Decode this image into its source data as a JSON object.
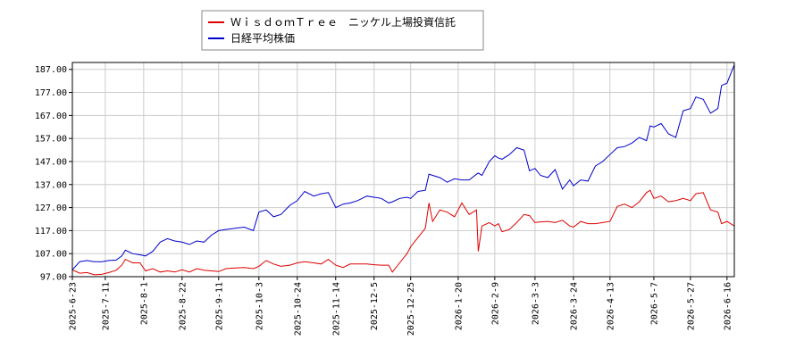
{
  "chart_data": {
    "type": "line",
    "title": "",
    "xlabel": "",
    "ylabel": "",
    "ylim": [
      97,
      190
    ],
    "grid": true,
    "legend_placement": "top-center",
    "y_ticks": [
      "187.00",
      "177.00",
      "167.00",
      "157.00",
      "147.00",
      "137.00",
      "127.00",
      "117.00",
      "107.00",
      "97.00"
    ],
    "x_ticks": [
      "2025-6-23",
      "2025-7-11",
      "2025-8-1",
      "2025-8-22",
      "2025-9-11",
      "2025-10-3",
      "2025-10-24",
      "2025-11-14",
      "2025-12-5",
      "2025-12-25",
      "2026-1-20",
      "2026-2-9",
      "2026-3-3",
      "2026-3-24",
      "2026-4-13",
      "2026-5-7",
      "2026-5-27",
      "2026-6-16"
    ],
    "x_range": [
      "2025-6-23",
      "2026-6-20"
    ],
    "series": [
      {
        "name": "ＷｉｓｄｏｍＴｒｅｅ　ニッケル上場投資信託",
        "color": "#dd0000",
        "points": [
          [
            "2025-6-23",
            100.0
          ],
          [
            "2025-6-27",
            98.5
          ],
          [
            "2025-7-1",
            98.8
          ],
          [
            "2025-7-5",
            97.8
          ],
          [
            "2025-7-9",
            98.0
          ],
          [
            "2025-7-13",
            98.8
          ],
          [
            "2025-7-17",
            99.8
          ],
          [
            "2025-7-20",
            102.0
          ],
          [
            "2025-7-22",
            104.5
          ],
          [
            "2025-7-26",
            103.0
          ],
          [
            "2025-7-30",
            103.0
          ],
          [
            "2025-8-2",
            99.5
          ],
          [
            "2025-8-6",
            100.5
          ],
          [
            "2025-8-10",
            99.0
          ],
          [
            "2025-8-14",
            99.5
          ],
          [
            "2025-8-18",
            99.0
          ],
          [
            "2025-8-22",
            100.0
          ],
          [
            "2025-8-26",
            99.0
          ],
          [
            "2025-8-30",
            100.5
          ],
          [
            "2025-9-3",
            99.8
          ],
          [
            "2025-9-7",
            99.5
          ],
          [
            "2025-9-11",
            99.2
          ],
          [
            "2025-9-15",
            100.5
          ],
          [
            "2025-9-20",
            100.8
          ],
          [
            "2025-9-25",
            101.0
          ],
          [
            "2025-9-30",
            100.5
          ],
          [
            "2025-10-3",
            101.5
          ],
          [
            "2025-10-7",
            104.0
          ],
          [
            "2025-10-11",
            102.5
          ],
          [
            "2025-10-15",
            101.5
          ],
          [
            "2025-10-20",
            102.0
          ],
          [
            "2025-10-24",
            103.0
          ],
          [
            "2025-10-28",
            103.5
          ],
          [
            "2025-11-2",
            103.0
          ],
          [
            "2025-11-6",
            102.5
          ],
          [
            "2025-11-10",
            104.5
          ],
          [
            "2025-11-14",
            102.0
          ],
          [
            "2025-11-18",
            101.0
          ],
          [
            "2025-11-22",
            102.5
          ],
          [
            "2025-11-26",
            102.5
          ],
          [
            "2025-12-1",
            102.5
          ],
          [
            "2025-12-5",
            102.2
          ],
          [
            "2025-12-9",
            102.0
          ],
          [
            "2025-12-13",
            102.0
          ],
          [
            "2025-12-15",
            99.0
          ],
          [
            "2025-12-19",
            103.0
          ],
          [
            "2025-12-23",
            107.0
          ],
          [
            "2025-12-25",
            110.0
          ],
          [
            "2025-12-29",
            114.0
          ],
          [
            "2026-1-2",
            118.0
          ],
          [
            "2026-1-4",
            129.0
          ],
          [
            "2026-1-6",
            121.0
          ],
          [
            "2026-1-10",
            126.0
          ],
          [
            "2026-1-14",
            125.0
          ],
          [
            "2026-1-18",
            123.0
          ],
          [
            "2026-1-22",
            129.0
          ],
          [
            "2026-1-26",
            124.0
          ],
          [
            "2026-1-30",
            126.0
          ],
          [
            "2026-1-31",
            108.0
          ],
          [
            "2026-2-2",
            119.0
          ],
          [
            "2026-2-6",
            120.5
          ],
          [
            "2026-2-9",
            119.0
          ],
          [
            "2026-2-11",
            120.0
          ],
          [
            "2026-2-13",
            116.5
          ],
          [
            "2026-2-17",
            117.5
          ],
          [
            "2026-2-21",
            120.5
          ],
          [
            "2026-2-25",
            124.0
          ],
          [
            "2026-2-28",
            123.5
          ],
          [
            "2026-3-3",
            120.5
          ],
          [
            "2026-3-6",
            120.8
          ],
          [
            "2026-3-10",
            121.0
          ],
          [
            "2026-3-14",
            120.5
          ],
          [
            "2026-3-18",
            121.5
          ],
          [
            "2026-3-22",
            119.0
          ],
          [
            "2026-3-24",
            118.5
          ],
          [
            "2026-3-28",
            121.0
          ],
          [
            "2026-4-1",
            120.0
          ],
          [
            "2026-4-5",
            120.0
          ],
          [
            "2026-4-9",
            120.5
          ],
          [
            "2026-4-13",
            121.0
          ],
          [
            "2026-4-17",
            127.5
          ],
          [
            "2026-4-21",
            128.5
          ],
          [
            "2026-4-25",
            127.0
          ],
          [
            "2026-4-29",
            129.5
          ],
          [
            "2026-5-3",
            133.5
          ],
          [
            "2026-5-5",
            134.5
          ],
          [
            "2026-5-7",
            131.0
          ],
          [
            "2026-5-11",
            132.0
          ],
          [
            "2026-5-15",
            129.5
          ],
          [
            "2026-5-19",
            130.0
          ],
          [
            "2026-5-23",
            131.0
          ],
          [
            "2026-5-27",
            130.0
          ],
          [
            "2026-5-30",
            133.0
          ],
          [
            "2026-6-3",
            133.5
          ],
          [
            "2026-6-7",
            126.0
          ],
          [
            "2026-6-11",
            125.0
          ],
          [
            "2026-6-13",
            120.0
          ],
          [
            "2026-6-16",
            121.0
          ],
          [
            "2026-6-20",
            119.0
          ]
        ]
      },
      {
        "name": "日経平均株価",
        "color": "#0000cc",
        "points": [
          [
            "2025-6-23",
            100.0
          ],
          [
            "2025-6-27",
            103.5
          ],
          [
            "2025-7-1",
            104.0
          ],
          [
            "2025-7-5",
            103.5
          ],
          [
            "2025-7-9",
            103.5
          ],
          [
            "2025-7-13",
            104.0
          ],
          [
            "2025-7-17",
            104.2
          ],
          [
            "2025-7-20",
            106.0
          ],
          [
            "2025-7-22",
            108.5
          ],
          [
            "2025-7-26",
            107.0
          ],
          [
            "2025-7-30",
            106.5
          ],
          [
            "2025-8-2",
            106.0
          ],
          [
            "2025-8-6",
            108.0
          ],
          [
            "2025-8-10",
            112.0
          ],
          [
            "2025-8-14",
            113.5
          ],
          [
            "2025-8-18",
            112.5
          ],
          [
            "2025-8-22",
            112.0
          ],
          [
            "2025-8-26",
            111.0
          ],
          [
            "2025-8-30",
            112.5
          ],
          [
            "2025-9-3",
            112.0
          ],
          [
            "2025-9-7",
            115.0
          ],
          [
            "2025-9-11",
            117.0
          ],
          [
            "2025-9-15",
            117.5
          ],
          [
            "2025-9-20",
            118.0
          ],
          [
            "2025-9-25",
            118.5
          ],
          [
            "2025-9-30",
            117.0
          ],
          [
            "2025-10-3",
            125.0
          ],
          [
            "2025-10-7",
            126.0
          ],
          [
            "2025-10-11",
            123.0
          ],
          [
            "2025-10-15",
            124.0
          ],
          [
            "2025-10-20",
            128.0
          ],
          [
            "2025-10-24",
            130.0
          ],
          [
            "2025-10-28",
            134.0
          ],
          [
            "2025-11-2",
            132.0
          ],
          [
            "2025-11-6",
            133.0
          ],
          [
            "2025-11-10",
            133.5
          ],
          [
            "2025-11-14",
            127.0
          ],
          [
            "2025-11-18",
            128.5
          ],
          [
            "2025-11-22",
            129.0
          ],
          [
            "2025-11-26",
            130.0
          ],
          [
            "2025-12-1",
            132.0
          ],
          [
            "2025-12-5",
            131.5
          ],
          [
            "2025-12-9",
            131.0
          ],
          [
            "2025-12-13",
            129.0
          ],
          [
            "2025-12-15",
            129.5
          ],
          [
            "2025-12-19",
            131.0
          ],
          [
            "2025-12-23",
            131.5
          ],
          [
            "2025-12-25",
            131.0
          ],
          [
            "2025-12-29",
            134.0
          ],
          [
            "2026-1-2",
            134.5
          ],
          [
            "2026-1-4",
            141.5
          ],
          [
            "2026-1-6",
            141.0
          ],
          [
            "2026-1-10",
            140.0
          ],
          [
            "2026-1-14",
            138.0
          ],
          [
            "2026-1-18",
            139.5
          ],
          [
            "2026-1-22",
            139.0
          ],
          [
            "2026-1-26",
            139.0
          ],
          [
            "2026-1-30",
            141.5
          ],
          [
            "2026-1-31",
            142.0
          ],
          [
            "2026-2-2",
            141.0
          ],
          [
            "2026-2-6",
            147.0
          ],
          [
            "2026-2-9",
            149.5
          ],
          [
            "2026-2-11",
            148.5
          ],
          [
            "2026-2-13",
            148.0
          ],
          [
            "2026-2-17",
            150.0
          ],
          [
            "2026-2-21",
            153.0
          ],
          [
            "2026-2-25",
            152.0
          ],
          [
            "2026-2-28",
            143.0
          ],
          [
            "2026-3-3",
            144.0
          ],
          [
            "2026-3-6",
            141.0
          ],
          [
            "2026-3-10",
            140.0
          ],
          [
            "2026-3-14",
            143.5
          ],
          [
            "2026-3-18",
            135.0
          ],
          [
            "2026-3-22",
            139.0
          ],
          [
            "2026-3-24",
            136.5
          ],
          [
            "2026-3-28",
            139.0
          ],
          [
            "2026-4-1",
            138.5
          ],
          [
            "2026-4-5",
            145.0
          ],
          [
            "2026-4-9",
            147.0
          ],
          [
            "2026-4-13",
            150.0
          ],
          [
            "2026-4-17",
            153.0
          ],
          [
            "2026-4-21",
            153.5
          ],
          [
            "2026-4-25",
            155.0
          ],
          [
            "2026-4-29",
            157.5
          ],
          [
            "2026-5-3",
            156.0
          ],
          [
            "2026-5-5",
            162.5
          ],
          [
            "2026-5-7",
            162.0
          ],
          [
            "2026-5-11",
            163.5
          ],
          [
            "2026-5-15",
            159.0
          ],
          [
            "2026-5-19",
            157.5
          ],
          [
            "2026-5-23",
            169.0
          ],
          [
            "2026-5-27",
            170.0
          ],
          [
            "2026-5-30",
            175.0
          ],
          [
            "2026-6-3",
            174.0
          ],
          [
            "2026-6-7",
            168.0
          ],
          [
            "2026-6-11",
            170.0
          ],
          [
            "2026-6-13",
            180.0
          ],
          [
            "2026-6-16",
            181.0
          ],
          [
            "2026-6-20",
            189.0
          ]
        ]
      }
    ]
  }
}
